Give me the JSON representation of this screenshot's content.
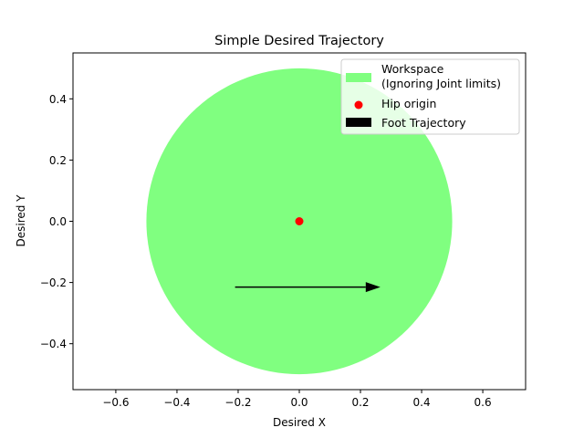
{
  "chart_data": {
    "type": "scatter",
    "title": "Simple Desired Trajectory",
    "xlabel": "Desired X",
    "ylabel": "Desired Y",
    "xlim": [
      -0.74,
      0.74
    ],
    "ylim": [
      -0.55,
      0.55
    ],
    "x_ticks": [
      -0.6,
      -0.4,
      -0.2,
      0.0,
      0.2,
      0.4,
      0.6
    ],
    "x_tick_labels": [
      "−0.6",
      "−0.4",
      "−0.2",
      "0.0",
      "0.2",
      "0.4",
      "0.6"
    ],
    "y_ticks": [
      -0.4,
      -0.2,
      0.0,
      0.2,
      0.4
    ],
    "y_tick_labels": [
      "−0.4",
      "−0.2",
      "0.0",
      "0.2",
      "0.4"
    ],
    "grid": false,
    "legend_position": "upper right",
    "workspace": {
      "name_line1": "Workspace",
      "name_line2": "(Ignoring Joint limits)",
      "center": [
        0,
        0
      ],
      "radius": 0.5,
      "color": "#80ff80"
    },
    "hip_origin": {
      "name": "Hip origin",
      "x": 0,
      "y": 0,
      "color": "#ff0000"
    },
    "foot_trajectory": {
      "name": "Foot Trajectory",
      "start": [
        -0.21,
        -0.215
      ],
      "end": [
        0.265,
        -0.215
      ],
      "color": "#000000"
    }
  }
}
